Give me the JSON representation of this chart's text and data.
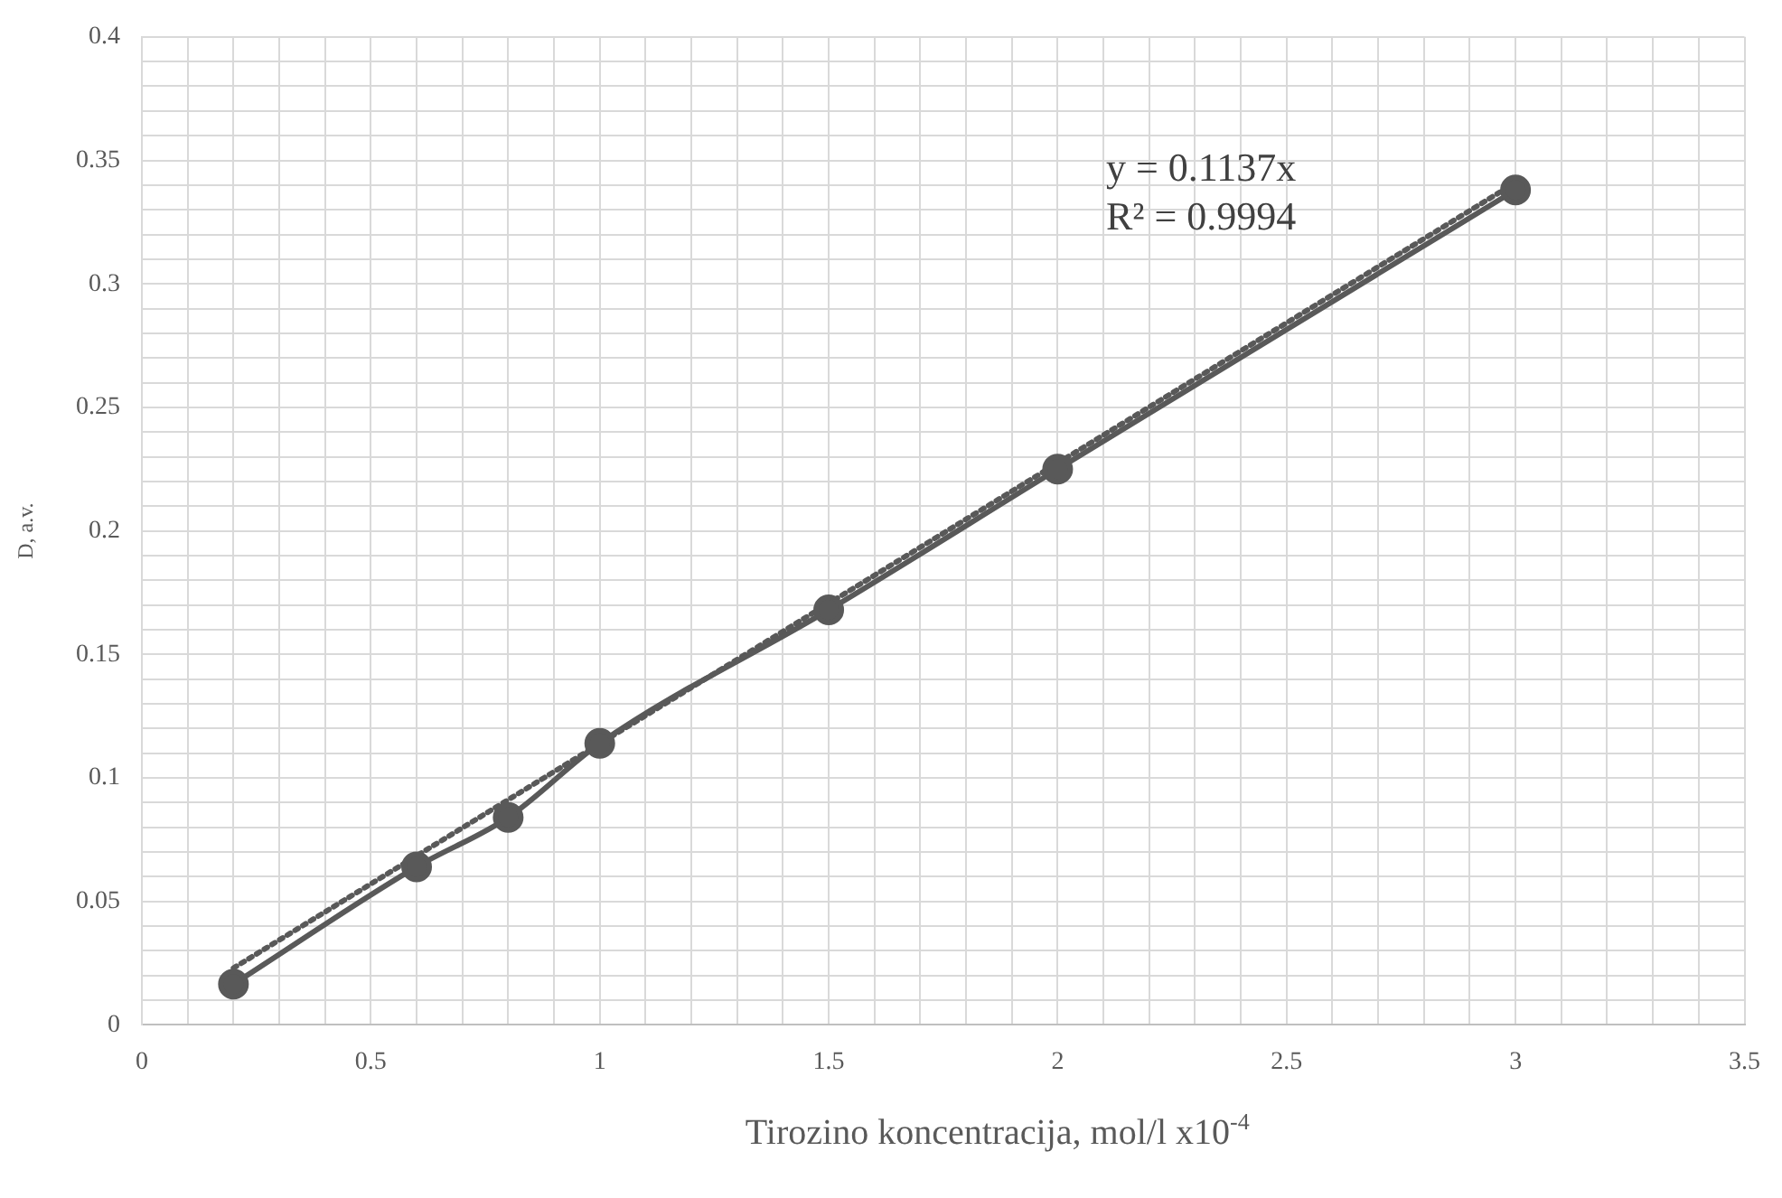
{
  "chart_data": {
    "type": "line",
    "xlabel": "Tirozino koncentracija, mol/l x10$^{-4}$",
    "ylabel": "D, a.v.",
    "series": [
      {
        "x": [
          0.2,
          0.6,
          0.8,
          1,
          1.5,
          2,
          3
        ],
        "values": [
          0.0165,
          0.064,
          0.084,
          0.114,
          0.168,
          0.225,
          0.338
        ],
        "color": "#595959",
        "marker": "circle",
        "line_style": "solid"
      },
      {
        "type": "line",
        "x": [
          0.2,
          3
        ],
        "values": [
          0.023,
          0.341
        ],
        "color": "#595959",
        "marker": "none",
        "line_style": "dotted"
      }
    ],
    "annotations": [
      "y = 0.1137x",
      "R² = 0.9994"
    ],
    "xlim": [
      0,
      3.5
    ],
    "ylim": [
      0,
      0.4
    ],
    "xticks": [
      0,
      {
        "value": 0.1,
        "label": null
      },
      {
        "value": 0.2,
        "label": null
      },
      {
        "value": 0.3,
        "label": null
      },
      {
        "value": 0.4,
        "label": null
      },
      0.5,
      {
        "value": 0.6,
        "label": null
      },
      {
        "value": 0.7,
        "label": null
      },
      {
        "value": 0.8,
        "label": null
      },
      {
        "value": 0.9,
        "label": null
      },
      1,
      {
        "value": 1.1,
        "label": null
      },
      {
        "value": 1.2,
        "label": null
      },
      {
        "value": 1.3,
        "label": null
      },
      {
        "value": 1.4,
        "label": null
      },
      1.5,
      {
        "value": 1.6,
        "label": null
      },
      {
        "value": 1.7,
        "label": null
      },
      {
        "value": 1.8,
        "label": null
      },
      {
        "value": 1.9,
        "label": null
      },
      2,
      {
        "value": 2.1,
        "label": null
      },
      {
        "value": 2.2,
        "label": null
      },
      {
        "value": 2.3,
        "label": null
      },
      {
        "value": 2.4,
        "label": null
      },
      2.5,
      {
        "value": 2.6,
        "label": null
      },
      {
        "value": 2.7,
        "label": null
      },
      {
        "value": 2.8,
        "label": null
      },
      {
        "value": 2.9,
        "label": null
      },
      3,
      {
        "value": 3.1,
        "label": null
      },
      {
        "value": 3.2,
        "label": null
      },
      {
        "value": 3.3,
        "label": null
      },
      {
        "value": 3.4,
        "label": null
      },
      3.5
    ],
    "yticks": [
      0,
      {
        "value": 0.01,
        "label": null
      },
      {
        "value": 0.02,
        "label": null
      },
      {
        "value": 0.03,
        "label": null
      },
      {
        "value": 0.04,
        "label": null
      },
      0.05,
      {
        "value": 0.06,
        "label": null
      },
      {
        "value": 0.07,
        "label": null
      },
      {
        "value": 0.08,
        "label": null
      },
      {
        "value": 0.09,
        "label": null
      },
      0.1,
      {
        "value": 0.11,
        "label": null
      },
      {
        "value": 0.12,
        "label": null
      },
      {
        "value": 0.13,
        "label": null
      },
      {
        "value": 0.14,
        "label": null
      },
      0.15,
      {
        "value": 0.16,
        "label": null
      },
      {
        "value": 0.17,
        "label": null
      },
      {
        "value": 0.18,
        "label": null
      },
      {
        "value": 0.19,
        "label": null
      },
      0.2,
      {
        "value": 0.21,
        "label": null
      },
      {
        "value": 0.22,
        "label": null
      },
      {
        "value": 0.23,
        "label": null
      },
      {
        "value": 0.24,
        "label": null
      },
      0.25,
      {
        "value": 0.26,
        "label": null
      },
      {
        "value": 0.27,
        "label": null
      },
      {
        "value": 0.28,
        "label": null
      },
      {
        "value": 0.29,
        "label": null
      },
      0.3,
      {
        "value": 0.31,
        "label": null
      },
      {
        "value": 0.32,
        "label": null
      },
      {
        "value": 0.33,
        "label": null
      },
      {
        "value": 0.34,
        "label": null
      },
      0.35,
      {
        "value": 0.36,
        "label": null
      },
      {
        "value": 0.37,
        "label": null
      },
      {
        "value": 0.38,
        "label": null
      },
      {
        "value": 0.39,
        "label": null
      },
      0.4
    ],
    "grid": true,
    "legend": false
  }
}
